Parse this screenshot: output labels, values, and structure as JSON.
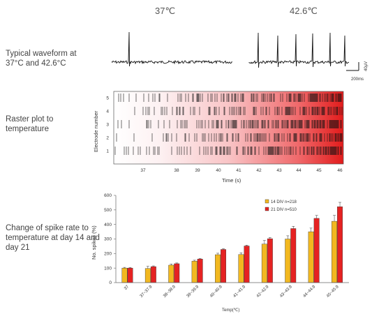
{
  "labels": {
    "waveform": "Typical waveform at 37°C and 42.6°C",
    "raster": "Raster plot to temperature",
    "change": "Change of spike rate to temperature at day 14 and day 21"
  },
  "waveform": {
    "temp_low": "37℃",
    "temp_high": "42.6℃",
    "scale_v": "40μV",
    "scale_t": "200ms"
  },
  "raster": {
    "ylabel": "Electrode number",
    "xlabel": "Time (s)",
    "electrodes": [
      "1",
      "2",
      "3",
      "4",
      "5"
    ],
    "x_ticks": [
      "37",
      "38",
      "39",
      "40",
      "41",
      "42",
      "43",
      "44",
      "45",
      "46"
    ]
  },
  "chart_data": {
    "type": "bar",
    "title": "",
    "xlabel": "Temp(℃)",
    "ylabel": "No. spikes (%)",
    "ylim": [
      0,
      600
    ],
    "y_ticks": [
      "0",
      "100",
      "200",
      "300",
      "400",
      "500",
      "600"
    ],
    "categories": [
      "37",
      "37~37.9",
      "38~38.9",
      "39~39.9",
      "40~40.9",
      "41~41.9",
      "42~42.9",
      "43~43.9",
      "44~44.9",
      "45~45.9"
    ],
    "legend_position": "top-right",
    "series": [
      {
        "name": "14 DIV n=218",
        "color": "#f2b820",
        "values": [
          100,
          97,
          120,
          148,
          192,
          193,
          265,
          300,
          350,
          422
        ],
        "errors": [
          5,
          15,
          8,
          6,
          10,
          12,
          25,
          22,
          25,
          40
        ]
      },
      {
        "name": "21 DIV n=510",
        "color": "#e52222",
        "values": [
          100,
          110,
          130,
          162,
          228,
          252,
          302,
          372,
          442,
          522
        ],
        "errors": [
          4,
          5,
          5,
          5,
          5,
          6,
          8,
          15,
          20,
          30
        ]
      }
    ]
  }
}
